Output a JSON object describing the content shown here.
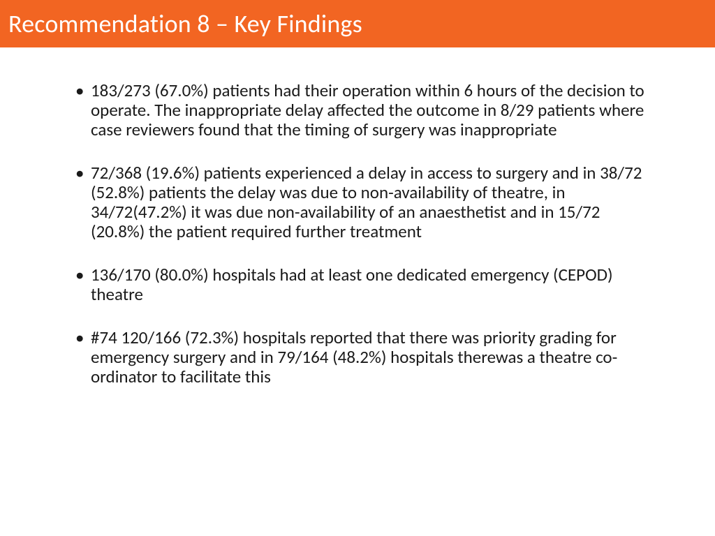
{
  "slide": {
    "title": "Recommendation 8 – Key Findings",
    "title_bar_color": "#f26522",
    "title_text_color": "#ffffff",
    "title_fontsize": 36,
    "body_fontsize": 25,
    "body_text_color": "#1a1a1a",
    "background_color": "#ffffff",
    "bullets": [
      "183/273 (67.0%) patients had their operation within 6 hours of the decision to operate. The inappropriate delay affected the outcome in 8/29 patients where case reviewers found that the timing of surgery was inappropriate",
      "72/368 (19.6%) patients experienced a delay in access to surgery and in 38/72 (52.8%) patients the delay was due to non-availability of theatre, in 34/72(47.2%) it was due non-availability of an anaesthetist and in 15/72 (20.8%) the patient required further treatment",
      "136/170 (80.0%) hospitals had at least one dedicated emergency (CEPOD) theatre",
      "#74 120/166 (72.3%) hospitals reported that there was priority grading for emergency surgery and in 79/164 (48.2%) hospitals therewas a theatre co-ordinator to facilitate this"
    ]
  }
}
